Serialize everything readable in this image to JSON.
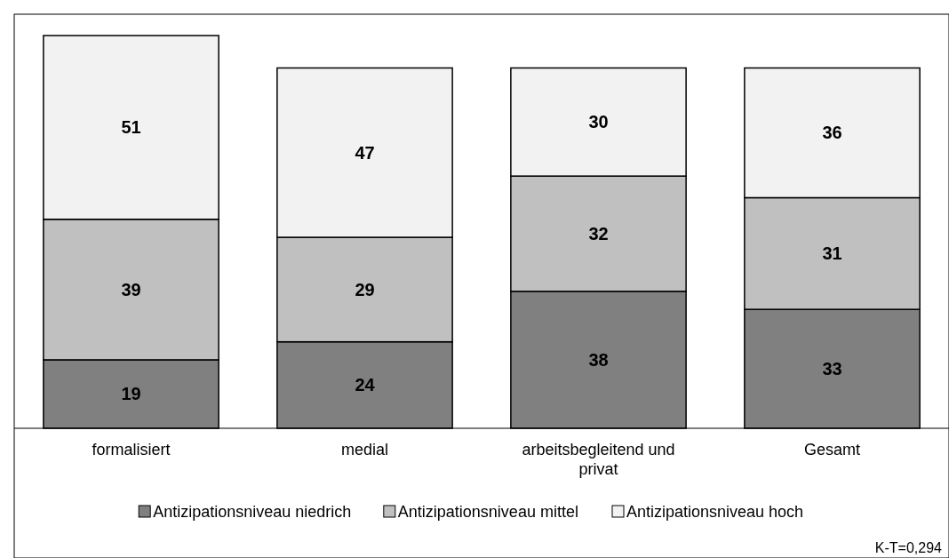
{
  "chart_data": {
    "type": "bar",
    "stacked": true,
    "categories": [
      "formalisiert",
      "medial",
      "arbeitsbegleitend und privat",
      "Gesamt"
    ],
    "series": [
      {
        "name": "Antizipationsniveau niedrich",
        "color": "#808080",
        "values": [
          19,
          24,
          38,
          33
        ]
      },
      {
        "name": "Antizipationsniveau mittel",
        "color": "#c0c0c0",
        "values": [
          39,
          29,
          32,
          31
        ]
      },
      {
        "name": "Antizipationsniveau hoch",
        "color": "#f2f2f2",
        "values": [
          51,
          47,
          30,
          36
        ]
      }
    ],
    "data_labels": true,
    "legend": "bottom",
    "grid": false,
    "annotations": [
      "K-T=0,294"
    ]
  }
}
